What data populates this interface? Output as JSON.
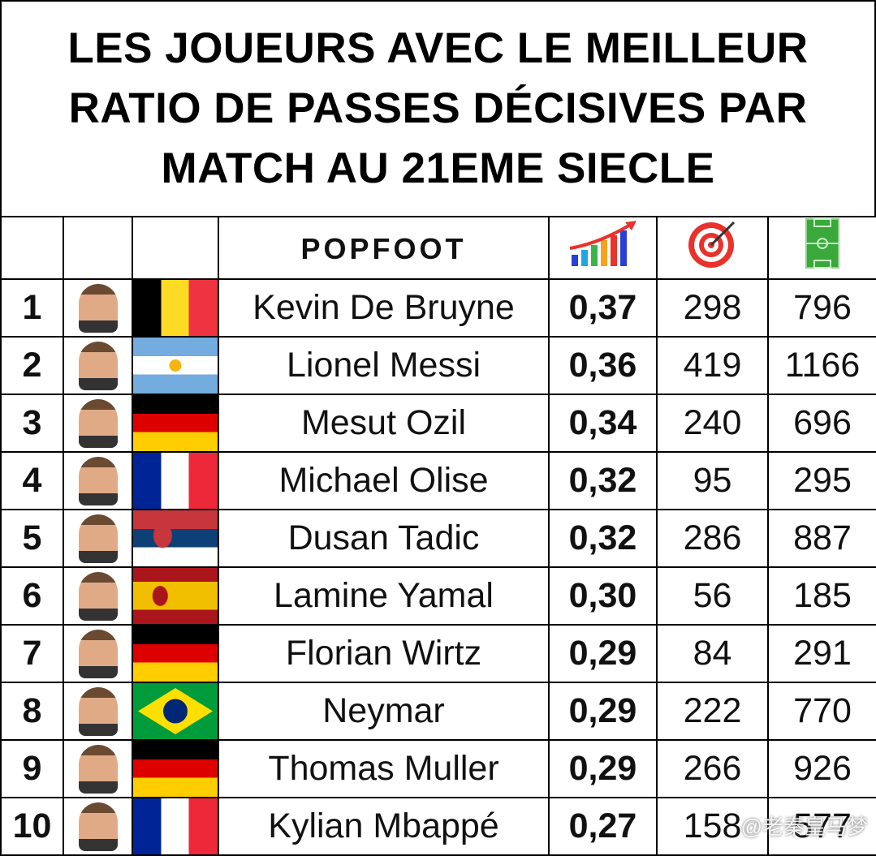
{
  "header": {
    "title_lines": [
      "LES JOUEURS AVEC LE MEILLEUR",
      "RATIO DE PASSES DÉCISIVES PAR",
      "MATCH AU 21EME SIECLE"
    ],
    "logo": "POPFOOT"
  },
  "table": {
    "rows": [
      {
        "rank": 1,
        "player": "Kevin De Bruyne",
        "ratio": "0,37",
        "assists": 298,
        "matches": 796
      },
      {
        "rank": 2,
        "player": "Lionel Messi",
        "ratio": "0,36",
        "assists": 419,
        "matches": 1166
      },
      {
        "rank": 3,
        "player": "Mesut Ozil",
        "ratio": "0,34",
        "assists": 240,
        "matches": 696
      },
      {
        "rank": 4,
        "player": "Michael Olise",
        "ratio": "0,32",
        "assists": 95,
        "matches": 295
      },
      {
        "rank": 5,
        "player": "Dusan Tadic",
        "ratio": "0,32",
        "assists": 286,
        "matches": 887
      },
      {
        "rank": 6,
        "player": "Lamine Yamal",
        "ratio": "0,30",
        "assists": 56,
        "matches": 185
      },
      {
        "rank": 7,
        "player": "Florian Wirtz",
        "ratio": "0,29",
        "assists": 84,
        "matches": 291
      },
      {
        "rank": 8,
        "player": "Neymar",
        "ratio": "0,29",
        "assists": 222,
        "matches": 770
      },
      {
        "rank": 9,
        "player": "Thomas Muller",
        "ratio": "0,29",
        "assists": 266,
        "matches": 926
      },
      {
        "rank": 10,
        "player": "Kylian Mbappé",
        "ratio": "0,27",
        "assists": 158,
        "matches": 577
      }
    ]
  },
  "watermark": "@老秦皇马梦"
}
